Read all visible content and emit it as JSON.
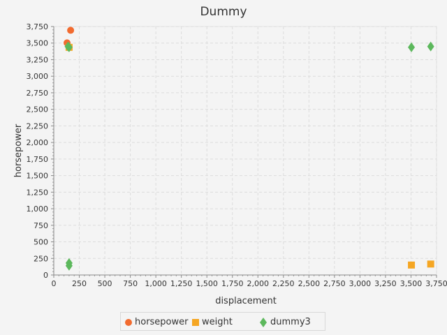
{
  "chart_data": {
    "type": "scatter",
    "title": "Dummy",
    "xlabel": "displacement",
    "ylabel": "horsepower",
    "xlim": [
      0,
      3750
    ],
    "ylim": [
      0,
      3750
    ],
    "xticks": [
      "0",
      "250",
      "500",
      "750",
      "1,000",
      "1,250",
      "1,500",
      "1,750",
      "2,000",
      "2,250",
      "2,500",
      "2,750",
      "3,000",
      "3,250",
      "3,500",
      "3,750"
    ],
    "yticks": [
      "0",
      "250",
      "500",
      "750",
      "1,000",
      "1,250",
      "1,500",
      "1,750",
      "2,000",
      "2,250",
      "2,500",
      "2,750",
      "3,000",
      "3,250",
      "3,500",
      "3,750"
    ],
    "grid": true,
    "legend_position": "bottom",
    "series": [
      {
        "name": "horsepower",
        "marker": "circle",
        "color": "#f26b2f",
        "points": [
          [
            130,
            3504
          ],
          [
            165,
            3693
          ],
          [
            150,
            3436
          ]
        ]
      },
      {
        "name": "weight",
        "marker": "square",
        "color": "#f5a623",
        "points": [
          [
            150,
            3436
          ],
          [
            3504,
            150
          ],
          [
            3693,
            165
          ]
        ]
      },
      {
        "name": "dummy3",
        "marker": "diamond",
        "color": "#5cb85c",
        "points": [
          [
            140,
            3449
          ],
          [
            150,
            3436
          ],
          [
            150,
            140
          ],
          [
            150,
            180
          ],
          [
            3504,
            3436
          ],
          [
            3693,
            3449
          ]
        ]
      }
    ]
  }
}
